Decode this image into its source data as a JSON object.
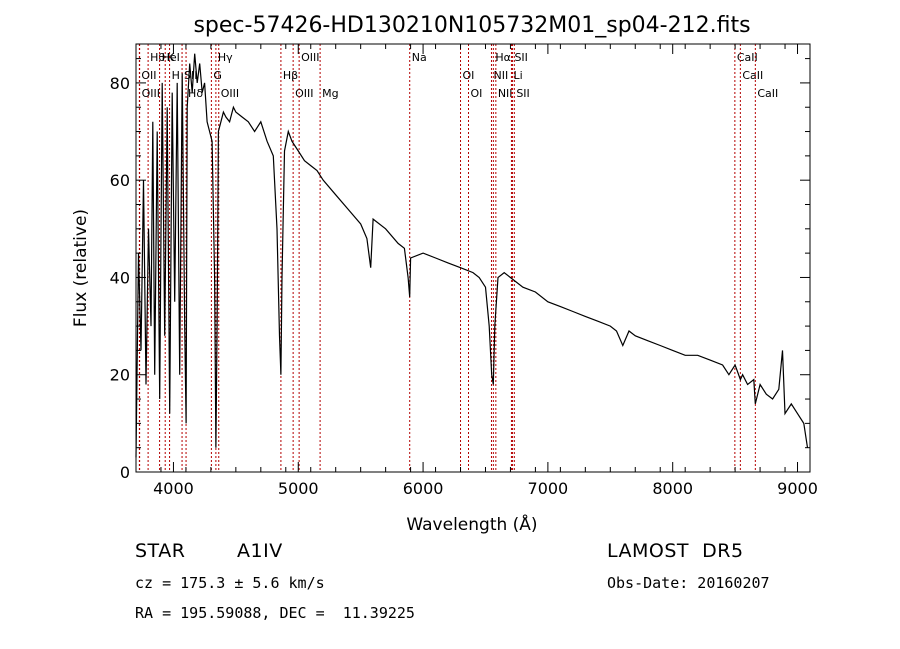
{
  "chart_data": {
    "type": "line",
    "title": "spec-57426-HD130210N105732M01_sp04-212.fits",
    "xlabel": "Wavelength (Å)",
    "ylabel": "Flux (relative)",
    "xlim": [
      3700,
      9100
    ],
    "ylim": [
      0,
      88
    ],
    "xticks": [
      4000,
      5000,
      6000,
      7000,
      8000,
      9000
    ],
    "yticks": [
      0,
      20,
      40,
      60,
      80
    ],
    "grid": false,
    "series": [
      {
        "x": [
          3700,
          3720,
          3740,
          3760,
          3780,
          3800,
          3820,
          3835,
          3850,
          3870,
          3890,
          3910,
          3930,
          3950,
          3970,
          3990,
          4010,
          4030,
          4050,
          4070,
          4090,
          4101,
          4110,
          4130,
          4150,
          4170,
          4190,
          4210,
          4230,
          4250,
          4270,
          4290,
          4310,
          4330,
          4340,
          4350,
          4360,
          4380,
          4400,
          4420,
          4450,
          4480,
          4500,
          4550,
          4600,
          4650,
          4700,
          4750,
          4800,
          4830,
          4850,
          4861,
          4870,
          4890,
          4920,
          4950,
          5000,
          5050,
          5100,
          5150,
          5200,
          5300,
          5400,
          5500,
          5550,
          5580,
          5600,
          5700,
          5800,
          5850,
          5880,
          5893,
          5900,
          6000,
          6100,
          6200,
          6300,
          6400,
          6450,
          6500,
          6530,
          6550,
          6563,
          6575,
          6600,
          6650,
          6700,
          6800,
          6900,
          7000,
          7100,
          7200,
          7300,
          7400,
          7500,
          7550,
          7600,
          7650,
          7700,
          7800,
          7900,
          8000,
          8100,
          8200,
          8300,
          8400,
          8450,
          8500,
          8542,
          8560,
          8600,
          8650,
          8662,
          8700,
          8750,
          8800,
          8850,
          8880,
          8900,
          8950,
          9000,
          9050,
          9080
        ],
        "values": [
          3,
          45,
          25,
          60,
          18,
          50,
          30,
          72,
          20,
          70,
          15,
          80,
          28,
          75,
          12,
          78,
          35,
          80,
          20,
          82,
          30,
          10,
          75,
          84,
          78,
          86,
          80,
          84,
          78,
          80,
          72,
          70,
          68,
          40,
          5,
          30,
          70,
          72,
          74,
          73,
          72,
          75,
          74,
          73,
          72,
          70,
          72,
          68,
          65,
          50,
          28,
          20,
          40,
          66,
          70,
          68,
          66,
          64,
          63,
          62,
          60,
          57,
          54,
          51,
          48,
          42,
          52,
          50,
          47,
          46,
          40,
          36,
          44,
          45,
          44,
          43,
          42,
          41,
          40,
          38,
          30,
          20,
          18,
          30,
          40,
          41,
          40,
          38,
          37,
          35,
          34,
          33,
          32,
          31,
          30,
          29,
          26,
          29,
          28,
          27,
          26,
          25,
          24,
          24,
          23,
          22,
          20,
          22,
          19,
          20,
          18,
          19,
          14,
          18,
          16,
          15,
          17,
          25,
          12,
          14,
          12,
          10,
          5
        ],
        "color": "#000000"
      }
    ],
    "line_markers": [
      {
        "label": "Hθ",
        "wl": 3797
      },
      {
        "label": "OII",
        "wl": 3727
      },
      {
        "label": "OIII",
        "wl": 3729
      },
      {
        "label": "K",
        "wl": 3934
      },
      {
        "label": "H",
        "wl": 3969
      },
      {
        "label": "Hδ",
        "wl": 4101
      },
      {
        "label": "HeI",
        "wl": 3889
      },
      {
        "label": "SII",
        "wl": 4069
      },
      {
        "label": "OIII",
        "wl": 4363
      },
      {
        "label": "Hγ",
        "wl": 4340
      },
      {
        "label": "G",
        "wl": 4304
      },
      {
        "label": "OIII",
        "wl": 4959
      },
      {
        "label": "OIII",
        "wl": 5007
      },
      {
        "label": "Hβ",
        "wl": 4861
      },
      {
        "label": "Mg",
        "wl": 5175
      },
      {
        "label": "Na",
        "wl": 5893
      },
      {
        "label": "OI",
        "wl": 6300
      },
      {
        "label": "OI",
        "wl": 6364
      },
      {
        "label": "Hα",
        "wl": 6563
      },
      {
        "label": "NII",
        "wl": 6548
      },
      {
        "label": "NII",
        "wl": 6583
      },
      {
        "label": "SII",
        "wl": 6716
      },
      {
        "label": "Li",
        "wl": 6708
      },
      {
        "label": "SII",
        "wl": 6731
      },
      {
        "label": "CaII",
        "wl": 8498
      },
      {
        "label": "CaII",
        "wl": 8542
      },
      {
        "label": "CaII",
        "wl": 8662
      }
    ]
  },
  "info": {
    "object_class": "STAR",
    "subclass": "A1IV",
    "survey": "LAMOST  DR5",
    "cz": "cz = 175.3 ± 5.6 km/s",
    "obs_date": "Obs-Date: 20160207",
    "coords": "RA = 195.59088, DEC =  11.39225"
  }
}
